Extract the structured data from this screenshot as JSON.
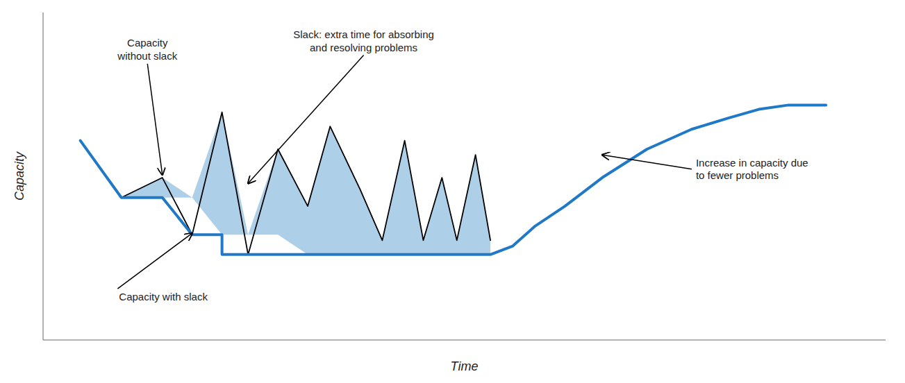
{
  "chart_data": {
    "type": "line",
    "x_label": "Time",
    "y_label": "Capacity",
    "xlim": [
      -0.5,
      10.8
    ],
    "ylim": [
      1.5,
      13.0
    ],
    "tick_labels": false,
    "grid": false,
    "series": [
      {
        "type": "area",
        "color": "#AECFE8",
        "x": [
          0.0,
          0.55,
          1.1,
          1.5,
          1.9,
          2.25,
          2.65,
          3.05,
          3.35,
          3.75,
          4.05,
          4.35,
          4.6,
          4.85,
          5.05,
          5.3,
          5.5
        ],
        "values": [
          8.5,
          6.5,
          7.2,
          5.2,
          9.5,
          4.5,
          8.2,
          6.2,
          9.0,
          6.8,
          5.0,
          8.5,
          5.0,
          7.2,
          5.0,
          8.0,
          5.0
        ],
        "base": [
          8.5,
          6.5,
          6.5,
          6.5,
          5.2,
          5.2,
          5.2,
          4.5,
          4.5,
          4.5,
          4.5,
          4.5,
          4.5,
          4.5,
          4.5,
          4.5,
          4.5
        ]
      },
      {
        "type": "line",
        "color": "#000000",
        "x": [
          0.0,
          0.55,
          1.1,
          1.5,
          1.9,
          2.25,
          2.65,
          3.05,
          3.35,
          3.75,
          4.05,
          4.35,
          4.6,
          4.85,
          5.05,
          5.3,
          5.5
        ],
        "values": [
          8.5,
          6.5,
          7.2,
          5.2,
          9.5,
          4.5,
          8.2,
          6.2,
          9.0,
          6.8,
          5.0,
          8.5,
          5.0,
          7.2,
          5.0,
          8.0,
          5.0
        ]
      },
      {
        "type": "line",
        "color": "#2079C7",
        "x": [
          0.0,
          0.55,
          0.55,
          1.1,
          1.5,
          1.5,
          1.9,
          1.9,
          2.25,
          2.65,
          2.65,
          3.05,
          3.35,
          3.35,
          3.75,
          4.05,
          4.05,
          4.35,
          4.6,
          4.6,
          4.85,
          5.05,
          5.05,
          5.3,
          5.5,
          5.5,
          5.8,
          6.1,
          6.5,
          7.0,
          7.6,
          8.2,
          8.7,
          9.1,
          9.5,
          10.0
        ],
        "values": [
          8.5,
          6.5,
          6.5,
          6.5,
          5.2,
          5.2,
          5.2,
          4.5,
          4.5,
          4.5,
          4.5,
          4.5,
          4.5,
          4.5,
          4.5,
          4.5,
          4.5,
          4.5,
          4.5,
          4.5,
          4.5,
          4.5,
          4.5,
          4.5,
          4.5,
          4.5,
          4.8,
          5.5,
          6.2,
          7.2,
          8.2,
          8.9,
          9.3,
          9.6,
          9.75,
          9.75
        ]
      }
    ],
    "annotations": [
      {
        "text": "Capacity\nwithout slack",
        "x": 1.1,
        "y": 7.3,
        "text_x": 0.9,
        "text_y": 11.2
      },
      {
        "text": "Capacity with slack",
        "x": 1.5,
        "y": 5.25,
        "text_x": 0.5,
        "text_y": 3.3
      },
      {
        "text": "Slack: extra time for absorbing\nand resolving problems",
        "x": 2.25,
        "y": 7.0,
        "text_x": 3.8,
        "text_y": 11.5
      },
      {
        "text": "Increase in capacity due\nto fewer problems",
        "x": 7.0,
        "y": 8.0,
        "text_x": 8.2,
        "text_y": 7.5
      }
    ]
  }
}
